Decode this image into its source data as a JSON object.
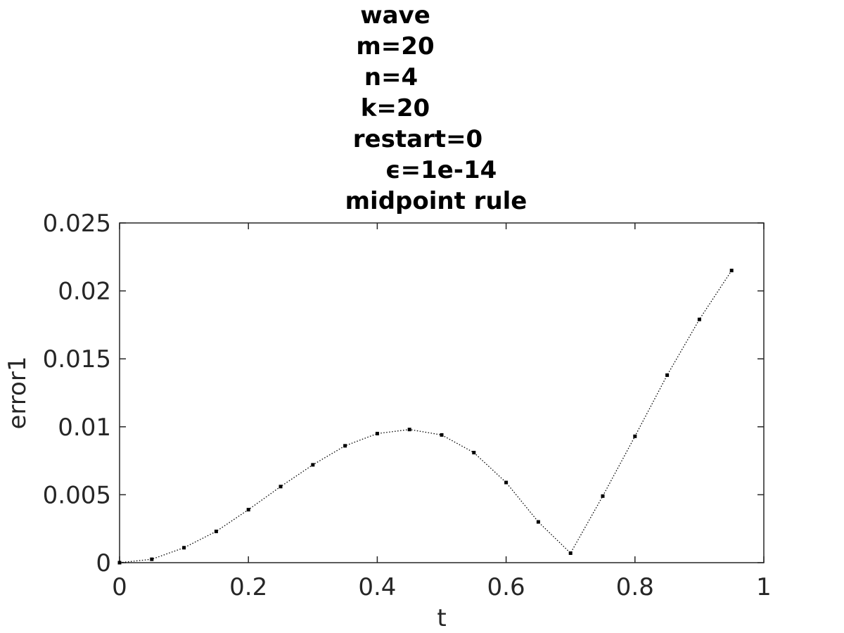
{
  "chart_data": {
    "type": "line",
    "title_lines": [
      "wave",
      "m=20",
      "n=4",
      "k=20",
      "restart=0",
      "ϵ=1e-14",
      "midpoint rule"
    ],
    "xlabel": "t",
    "ylabel": "error1",
    "xlim": [
      0,
      1
    ],
    "ylim": [
      0,
      0.025
    ],
    "x_ticks": [
      0,
      0.2,
      0.4,
      0.6,
      0.8,
      1
    ],
    "x_tick_labels": [
      "0",
      "0.2",
      "0.4",
      "0.6",
      "0.8",
      "1"
    ],
    "y_ticks": [
      0,
      0.005,
      0.01,
      0.015,
      0.02,
      0.025
    ],
    "y_tick_labels": [
      "0",
      "0.005",
      "0.01",
      "0.015",
      "0.02",
      "0.025"
    ],
    "grid": false,
    "line_style": "dotted",
    "marker": "point",
    "series_color": "#000000",
    "series": [
      {
        "x": [
          0,
          0.05,
          0.1,
          0.15,
          0.2,
          0.25,
          0.3,
          0.35,
          0.4,
          0.45,
          0.5,
          0.55,
          0.6,
          0.65,
          0.7,
          0.75,
          0.8,
          0.85,
          0.9,
          0.95
        ],
        "y": [
          0,
          0.00025,
          0.0011,
          0.0023,
          0.0039,
          0.0056,
          0.0072,
          0.0086,
          0.0095,
          0.0098,
          0.0094,
          0.0081,
          0.0059,
          0.003,
          0.0007,
          0.0049,
          0.0093,
          0.0138,
          0.0179,
          0.0215
        ]
      }
    ]
  }
}
